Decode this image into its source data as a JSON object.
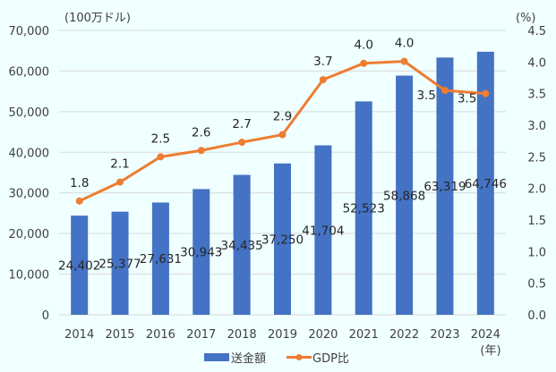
{
  "chart_data": {
    "type": "bar+line",
    "title": "",
    "categories": [
      "2014",
      "2015",
      "2016",
      "2017",
      "2018",
      "2019",
      "2020",
      "2021",
      "2022",
      "2023",
      "2024"
    ],
    "xlabel_suffix": "(年)",
    "series": [
      {
        "name": "送金額",
        "type": "bar",
        "axis": "left",
        "color": "#4472C4",
        "values": [
          24402,
          25377,
          27631,
          30943,
          34435,
          37250,
          41704,
          52523,
          58868,
          63319,
          64746
        ],
        "labels": [
          "24,402",
          "25,377",
          "27,631",
          "30,943",
          "34,435",
          "37,250",
          "41,704",
          "52,523",
          "58,868",
          "63,319",
          "64,746"
        ]
      },
      {
        "name": "GDP比",
        "type": "line",
        "axis": "right",
        "color": "#ED7D31",
        "values": [
          1.8,
          2.1,
          2.5,
          2.6,
          2.7,
          2.9,
          3.7,
          4.0,
          4.0,
          3.5,
          3.5
        ],
        "plot_values": [
          1.8,
          2.1,
          2.5,
          2.6,
          2.73,
          2.85,
          3.72,
          3.98,
          4.01,
          3.55,
          3.5
        ],
        "labels": [
          "1.8",
          "2.1",
          "2.5",
          "2.6",
          "2.7",
          "2.9",
          "3.7",
          "4.0",
          "4.0",
          "3.5",
          "3.5"
        ]
      }
    ],
    "left_axis": {
      "unit_label": "(100万ドル)",
      "ylim": [
        0,
        70000
      ],
      "ticks": [
        0,
        10000,
        20000,
        30000,
        40000,
        50000,
        60000,
        70000
      ],
      "tick_labels": [
        "0",
        "10,000",
        "20,000",
        "30,000",
        "40,000",
        "50,000",
        "60,000",
        "70,000"
      ]
    },
    "right_axis": {
      "unit_label": "(%)",
      "ylim": [
        0,
        4.5
      ],
      "ticks": [
        0,
        0.5,
        1.0,
        1.5,
        2.0,
        2.5,
        3.0,
        3.5,
        4.0,
        4.5
      ],
      "tick_labels": [
        "0.0",
        "0.5",
        "1.0",
        "1.5",
        "2.0",
        "2.5",
        "3.0",
        "3.5",
        "4.0",
        "4.5"
      ]
    },
    "grid": true,
    "legend": {
      "placement": "bottom",
      "items": [
        "送金額",
        "GDP比"
      ]
    }
  },
  "colors": {
    "background": "#F0FFFF",
    "gridline": "#D9D9D9",
    "bar": "#4472C4",
    "line": "#ED7D31"
  }
}
